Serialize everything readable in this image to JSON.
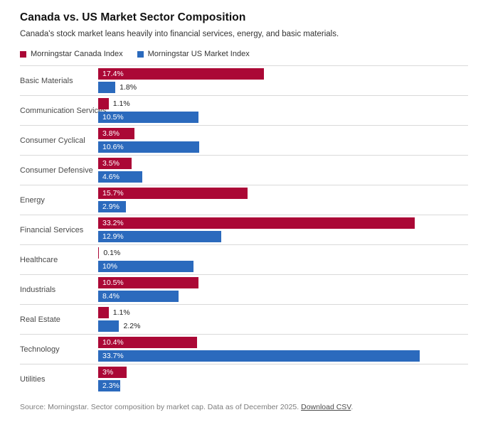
{
  "header": {
    "title": "Canada vs. US Market Sector Composition",
    "subtitle": "Canada's stock market leans heavily into financial services, energy, and basic materials."
  },
  "legend": [
    {
      "label": "Morningstar Canada Index",
      "color": "#ab0836"
    },
    {
      "label": "Morningstar US Market Index",
      "color": "#2b6abd"
    }
  ],
  "chart_data": {
    "type": "bar",
    "orientation": "horizontal",
    "title": "Canada vs. US Market Sector Composition",
    "xlabel": "",
    "ylabel": "",
    "xlim": [
      0,
      38.9
    ],
    "grid": false,
    "legend_position": "top",
    "categories": [
      "Basic Materials",
      "Communication Services",
      "Consumer Cyclical",
      "Consumer Defensive",
      "Energy",
      "Financial Services",
      "Healthcare",
      "Industrials",
      "Real Estate",
      "Technology",
      "Utilities"
    ],
    "series": [
      {
        "name": "Morningstar Canada Index",
        "color": "#ab0836",
        "values": [
          17.4,
          1.1,
          3.8,
          3.5,
          15.7,
          33.2,
          0.1,
          10.5,
          1.1,
          10.4,
          3
        ],
        "labels": [
          "17.4%",
          "1.1%",
          "3.8%",
          "3.5%",
          "15.7%",
          "33.2%",
          "0.1%",
          "10.5%",
          "1.1%",
          "10.4%",
          "3%"
        ]
      },
      {
        "name": "Morningstar US Market Index",
        "color": "#2b6abd",
        "values": [
          1.8,
          10.5,
          10.6,
          4.6,
          2.9,
          12.9,
          10,
          8.4,
          2.2,
          33.7,
          2.3
        ],
        "labels": [
          "1.8%",
          "10.5%",
          "10.6%",
          "4.6%",
          "2.9%",
          "12.9%",
          "10%",
          "8.4%",
          "2.2%",
          "33.7%",
          "2.3%"
        ]
      }
    ]
  },
  "footer": {
    "source_text": "Source: Morningstar. Sector composition by market cap. Data as of December 2025.",
    "download_label": "Download CSV",
    "trailing": "."
  }
}
